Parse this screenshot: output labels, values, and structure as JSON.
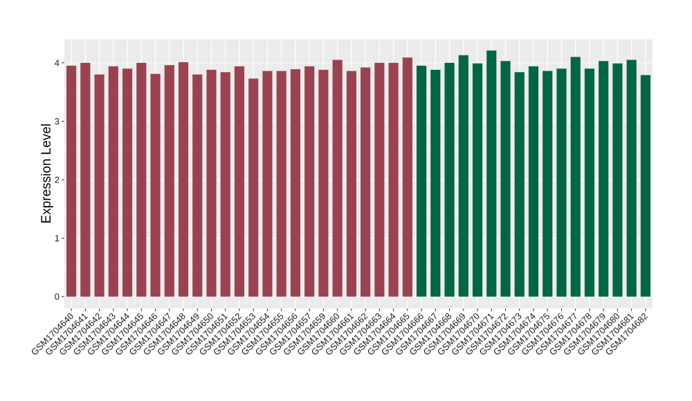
{
  "chart_data": {
    "type": "bar",
    "ylabel": "Expression Level",
    "xlabel": "",
    "ylim": [
      -0.2,
      4.4
    ],
    "yticks": [
      0,
      1,
      2,
      3,
      4
    ],
    "grid": true,
    "background": "#ebebeb",
    "gridline_color": "#ffffff",
    "categories": [
      "GSM1704640",
      "GSM1704641",
      "GSM1704642",
      "GSM1704643",
      "GSM1704644",
      "GSM1704645",
      "GSM1704646",
      "GSM1704647",
      "GSM1704648",
      "GSM1704649",
      "GSM1704650",
      "GSM1704651",
      "GSM1704652",
      "GSM1704653",
      "GSM1704654",
      "GSM1704655",
      "GSM1704656",
      "GSM1704657",
      "GSM1704659",
      "GSM1704660",
      "GSM1704661",
      "GSM1704662",
      "GSM1704663",
      "GSM1704664",
      "GSM1704665",
      "GSM1704666",
      "GSM1704667",
      "GSM1704668",
      "GSM1704669",
      "GSM1704670",
      "GSM1704671",
      "GSM1704672",
      "GSM1704673",
      "GSM1704674",
      "GSM1704675",
      "GSM1704676",
      "GSM1704677",
      "GSM1704678",
      "GSM1704679",
      "GSM1704680",
      "GSM1704681",
      "GSM1704682"
    ],
    "values": [
      3.95,
      4.0,
      3.8,
      3.94,
      3.9,
      4.0,
      3.81,
      3.96,
      4.01,
      3.8,
      3.88,
      3.84,
      3.94,
      3.73,
      3.86,
      3.86,
      3.89,
      3.94,
      3.88,
      4.05,
      3.86,
      3.92,
      4.0,
      4.0,
      4.09,
      3.95,
      3.88,
      4.0,
      4.13,
      3.99,
      4.21,
      4.03,
      3.84,
      3.94,
      3.86,
      3.9,
      4.1,
      3.9,
      4.03,
      3.99,
      4.05,
      3.79
    ],
    "groups": [
      {
        "color": "#9a4350",
        "count": 25
      },
      {
        "color": "#006644",
        "count": 17
      }
    ]
  }
}
